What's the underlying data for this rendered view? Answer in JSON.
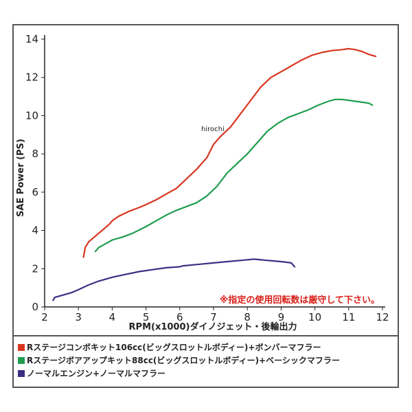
{
  "chart_data": {
    "type": "line",
    "xlabel": "RPM(x1000)ダイノジェット・後輪出力",
    "ylabel": "SAE Power (PS)",
    "xlim": [
      2,
      12
    ],
    "ylim": [
      0,
      14
    ],
    "xticks": [
      2,
      3,
      4,
      5,
      6,
      7,
      8,
      9,
      10,
      11,
      12
    ],
    "yticks": [
      0,
      2,
      4,
      6,
      8,
      10,
      12,
      14
    ],
    "grid": false,
    "legend_position": "bottom",
    "annotation": "※指定の使用回転数は厳守して下さい。",
    "watermark": "hirochi",
    "series": [
      {
        "name": "Rステージコンボキット106cc(ビッグスロットルボディー)+ボンバーマフラー",
        "color": "#d8351f",
        "x": [
          3.15,
          3.2,
          3.3,
          3.5,
          3.7,
          3.9,
          4.0,
          4.2,
          4.5,
          4.8,
          5.0,
          5.3,
          5.6,
          5.9,
          6.2,
          6.5,
          6.8,
          7.0,
          7.2,
          7.5,
          7.8,
          8.1,
          8.4,
          8.7,
          9.0,
          9.3,
          9.6,
          9.9,
          10.2,
          10.5,
          10.8,
          11.0,
          11.2,
          11.4,
          11.6,
          11.8
        ],
        "y": [
          2.6,
          3.1,
          3.4,
          3.7,
          4.0,
          4.3,
          4.5,
          4.75,
          5.0,
          5.2,
          5.35,
          5.6,
          5.9,
          6.2,
          6.7,
          7.2,
          7.8,
          8.5,
          8.9,
          9.4,
          10.1,
          10.8,
          11.5,
          12.0,
          12.3,
          12.6,
          12.9,
          13.15,
          13.3,
          13.4,
          13.45,
          13.5,
          13.45,
          13.35,
          13.2,
          13.1
        ]
      },
      {
        "name": "Rステージボアアップキット88cc(ビッグスロットルボディー)+ベーシックマフラー",
        "color": "#1e9d4d",
        "x": [
          3.5,
          3.6,
          3.8,
          4.0,
          4.3,
          4.6,
          5.0,
          5.3,
          5.6,
          5.9,
          6.2,
          6.5,
          6.8,
          7.1,
          7.4,
          7.7,
          8.0,
          8.3,
          8.6,
          8.9,
          9.2,
          9.5,
          9.8,
          10.1,
          10.4,
          10.6,
          10.8,
          11.0,
          11.2,
          11.4,
          11.6,
          11.7
        ],
        "y": [
          2.9,
          3.1,
          3.3,
          3.5,
          3.65,
          3.85,
          4.2,
          4.5,
          4.8,
          5.05,
          5.25,
          5.45,
          5.8,
          6.3,
          7.0,
          7.5,
          8.0,
          8.6,
          9.2,
          9.6,
          9.9,
          10.1,
          10.3,
          10.55,
          10.75,
          10.85,
          10.85,
          10.8,
          10.75,
          10.7,
          10.65,
          10.55
        ]
      },
      {
        "name": "ノーマルエンジン+ノーマルマフラー",
        "color": "#3b2f83",
        "x": [
          2.25,
          2.3,
          2.5,
          2.8,
          3.0,
          3.3,
          3.6,
          4.0,
          4.4,
          4.8,
          5.2,
          5.6,
          6.0,
          6.1,
          6.4,
          6.7,
          7.0,
          7.3,
          7.6,
          7.9,
          8.2,
          8.5,
          8.8,
          9.1,
          9.3,
          9.4
        ],
        "y": [
          0.35,
          0.5,
          0.6,
          0.75,
          0.9,
          1.15,
          1.35,
          1.55,
          1.7,
          1.85,
          1.95,
          2.05,
          2.1,
          2.15,
          2.2,
          2.25,
          2.3,
          2.35,
          2.4,
          2.45,
          2.5,
          2.45,
          2.4,
          2.35,
          2.3,
          2.1
        ]
      }
    ]
  }
}
